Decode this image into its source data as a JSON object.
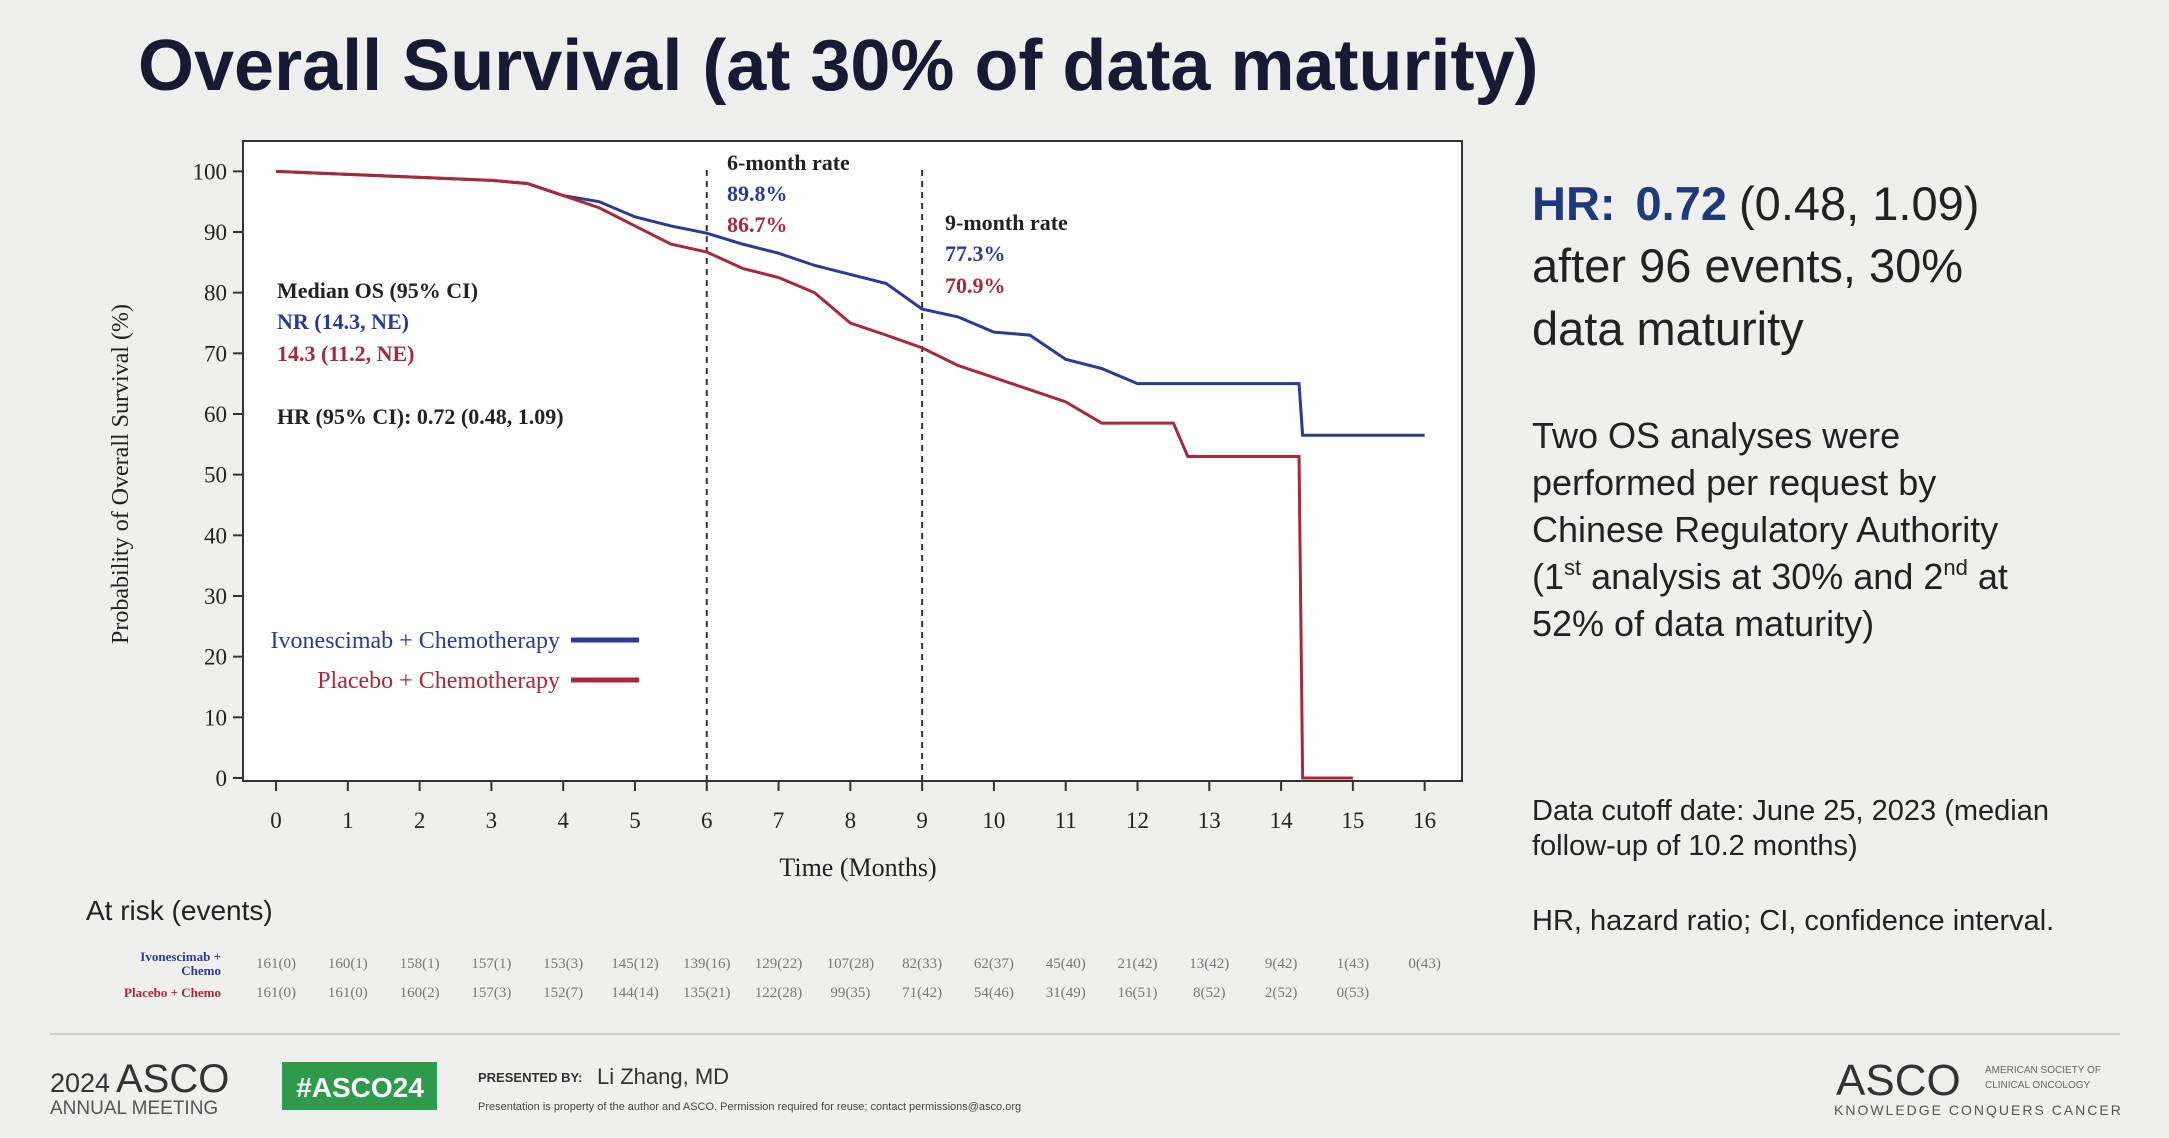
{
  "chart_data": {
    "type": "line",
    "title": "Overall Survival (at 30% of data maturity)",
    "x_label": "Time (Months)",
    "y_label": "Probability of Overall Survival (%)",
    "xlim": [
      -0.46,
      16.52
    ],
    "xticks": [
      0,
      1,
      2,
      3,
      4,
      5,
      6,
      7,
      8,
      9,
      10,
      11,
      12,
      13,
      14,
      15,
      16
    ],
    "ylim": [
      -0.5,
      105
    ],
    "yticks": [
      0,
      10,
      20,
      30,
      40,
      50,
      60,
      70,
      80,
      90,
      100
    ],
    "legend": "lower left",
    "series": [
      {
        "name": "Ivonescimab + Chemotherapy",
        "color": "#2b3a94",
        "x": [
          0,
          1,
          2,
          3,
          3.5,
          4,
          4.5,
          5,
          5.5,
          6,
          6.5,
          7,
          7.5,
          8,
          8.5,
          9,
          9.5,
          10,
          10.5,
          11,
          11.5,
          12,
          12.5,
          13,
          13.5,
          14,
          14.25,
          14.3,
          14.5,
          15,
          16
        ],
        "values": [
          100,
          99.5,
          99,
          98.5,
          98,
          96,
          95,
          92.5,
          91,
          89.8,
          88,
          86.5,
          84.5,
          83,
          81.5,
          77.3,
          76,
          73.5,
          73,
          69,
          67.5,
          65,
          65,
          65,
          65,
          65,
          65,
          56.5,
          56.5,
          56.5,
          56.5
        ]
      },
      {
        "name": "Placebo + Chemotherapy",
        "color": "#a8283c",
        "x": [
          0,
          1,
          2,
          3,
          3.5,
          4,
          4.5,
          5,
          5.5,
          6,
          6.5,
          7,
          7.5,
          8,
          8.5,
          9,
          9.5,
          10,
          10.5,
          11,
          11.5,
          12,
          12.5,
          12.7,
          13,
          13.5,
          14,
          14.25,
          14.3,
          15
        ],
        "values": [
          100,
          99.5,
          99,
          98.5,
          98,
          96,
          94,
          91,
          88,
          86.7,
          84,
          82.5,
          80,
          75,
          73,
          70.9,
          68,
          66,
          64,
          62,
          58.5,
          58.5,
          58.5,
          53,
          53,
          53,
          53,
          53,
          0,
          0
        ]
      }
    ],
    "annotations": {
      "six_month": {
        "label": "6-month rate",
        "blue": "89.8%",
        "red": "86.7%"
      },
      "nine_month": {
        "label": "9-month rate",
        "blue": "77.3%",
        "red": "70.9%"
      },
      "median_title": "Median OS (95% CI)",
      "median_blue": "NR (14.3, NE)",
      "median_red": "14.3 (11.2, NE)",
      "hr": "HR (95% CI): 0.72 (0.48, 1.09)"
    },
    "at_risk": {
      "title": "At risk (events)",
      "rows": [
        {
          "label": [
            "Ivonescimab +",
            "Chemo"
          ],
          "values": [
            "161(0)",
            "160(1)",
            "158(1)",
            "157(1)",
            "153(3)",
            "145(12)",
            "139(16)",
            "129(22)",
            "107(28)",
            "82(33)",
            "62(37)",
            "45(40)",
            "21(42)",
            "13(42)",
            "9(42)",
            "1(43)",
            "0(43)"
          ]
        },
        {
          "label": [
            "Placebo + Chemo"
          ],
          "values": [
            "161(0)",
            "161(0)",
            "160(2)",
            "157(3)",
            "152(7)",
            "144(14)",
            "135(21)",
            "122(28)",
            "99(35)",
            "71(42)",
            "54(46)",
            "31(49)",
            "16(51)",
            "8(52)",
            "2(52)",
            "0(53)"
          ]
        }
      ]
    }
  },
  "side": {
    "hr_label": "HR:",
    "hr_value": "0.72",
    "hr_ci": "(0.48, 1.09)",
    "hr_lines": [
      "after 96 events, 30%",
      "data maturity"
    ],
    "para": [
      [
        "Two OS analyses were"
      ],
      [
        "performed per request by"
      ],
      [
        "Chinese Regulatory Authority"
      ],
      [
        "(1",
        "st",
        " analysis at 30% and 2",
        "nd",
        " at"
      ],
      [
        "52% of data maturity)"
      ]
    ],
    "cutoff": [
      "Data cutoff date: June 25, 2023 (median",
      "follow-up of 10.2 months)"
    ],
    "abbrev": "HR, hazard ratio; CI, confidence interval."
  },
  "footer": {
    "year": "2024",
    "asco": "ASCO",
    "meeting": "ANNUAL MEETING",
    "hashtag": "#ASCO24",
    "presented_by": "PRESENTED BY:",
    "presenter": "Li Zhang, MD",
    "disclaimer": "Presentation is property of the author and ASCO. Permission required for reuse; contact permissions@asco.org",
    "logo": "ASCO",
    "logo_sub": [
      "AMERICAN SOCIETY OF",
      "CLINICAL ONCOLOGY"
    ],
    "tagline": "KNOWLEDGE CONQUERS CANCER"
  }
}
